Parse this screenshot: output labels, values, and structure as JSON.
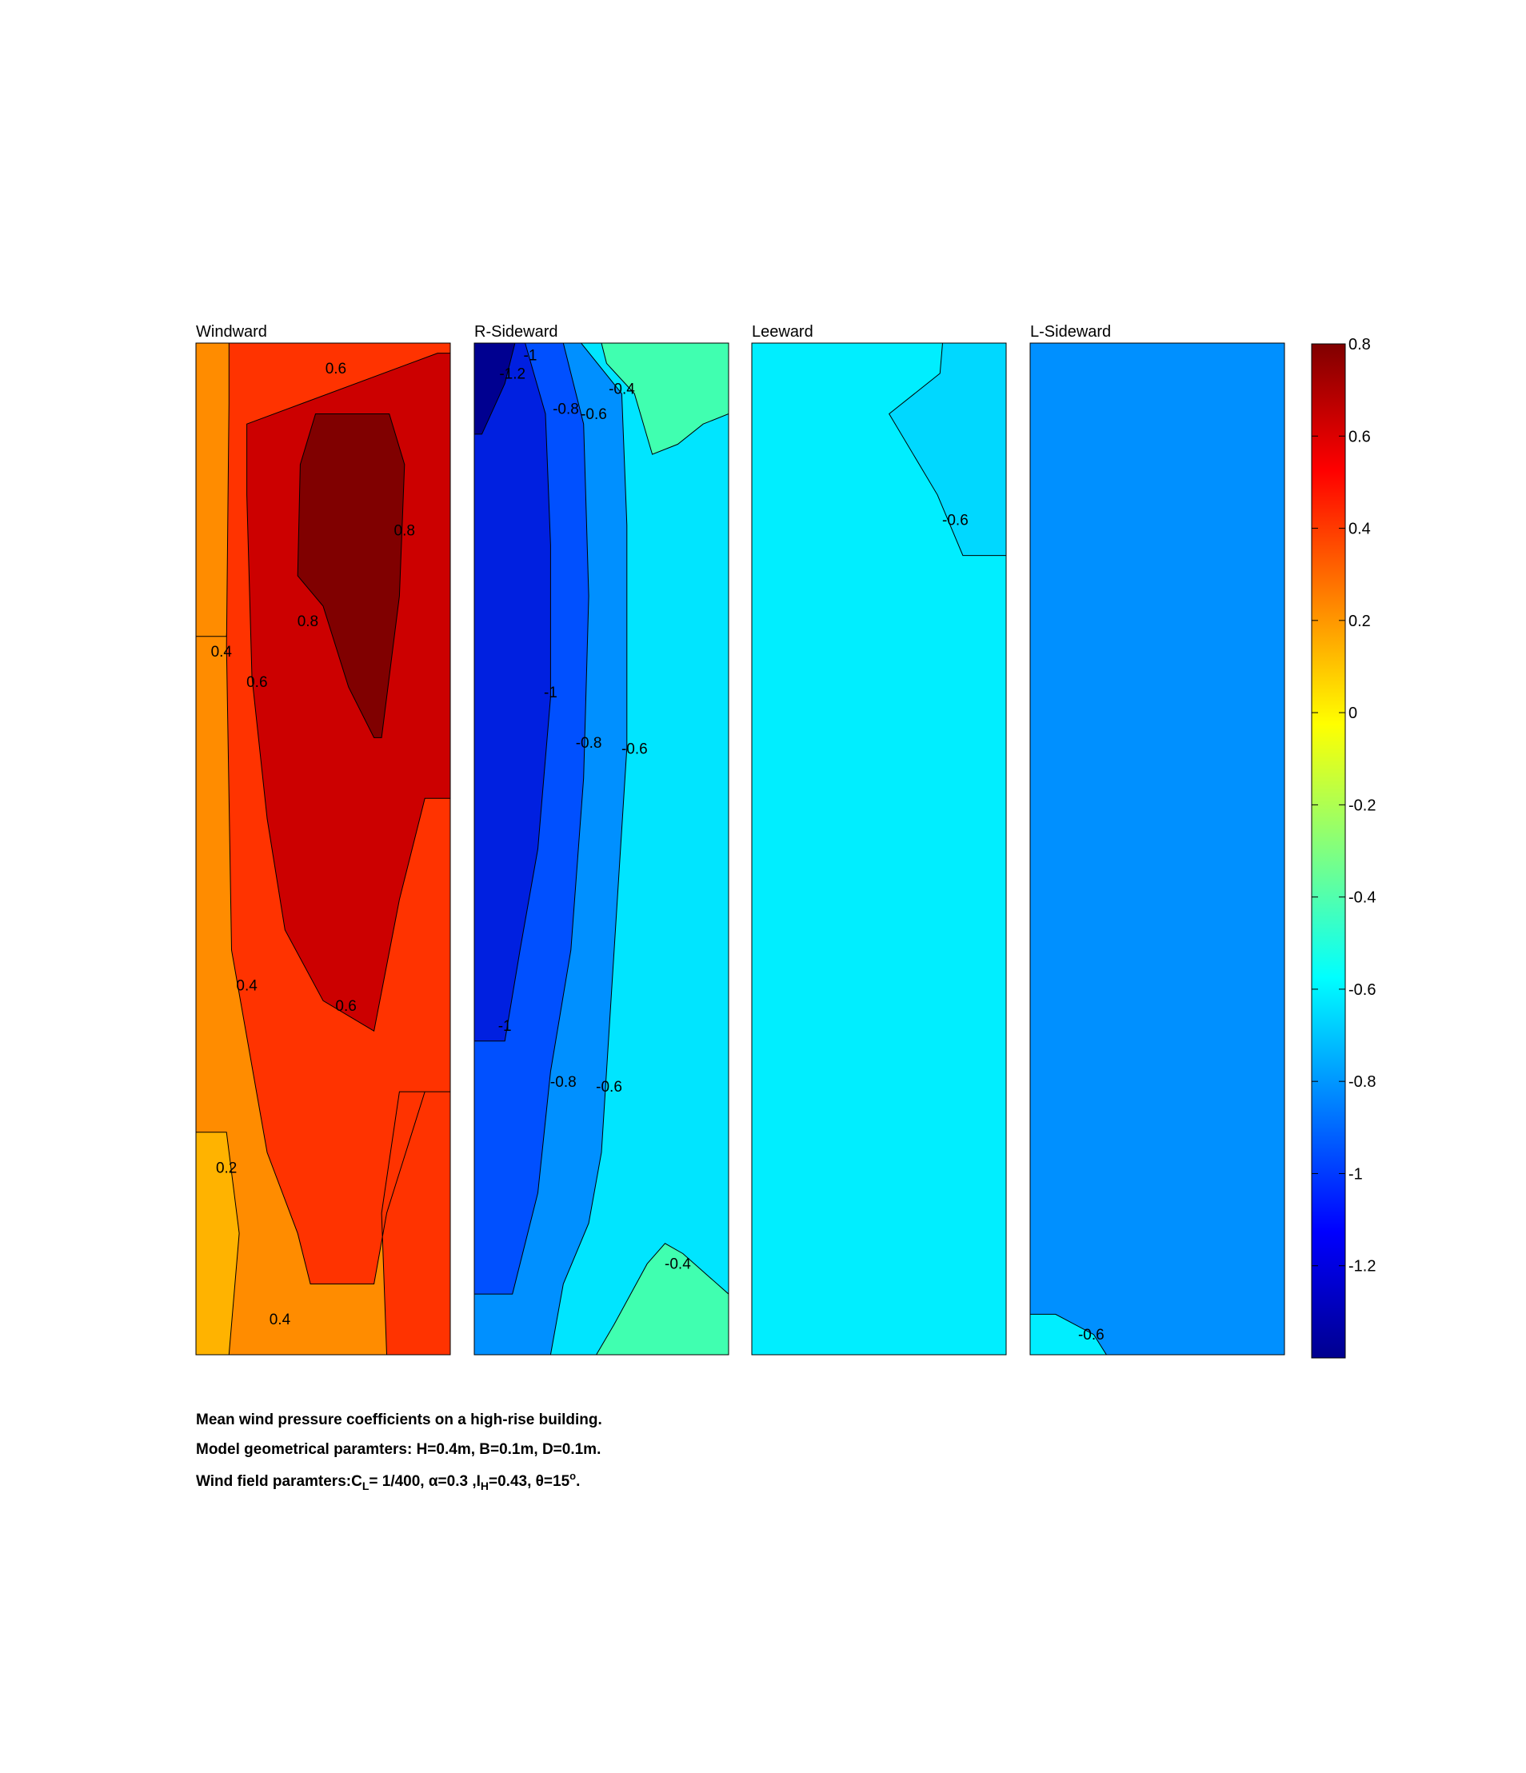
{
  "chart_data": {
    "type": "heatmap",
    "panels": [
      {
        "title": "Windward",
        "background": "#ff8c00",
        "regions": [
          {
            "color": "#ffb300",
            "poly": [
              [
                0,
                0.78
              ],
              [
                0.12,
                0.78
              ],
              [
                0.17,
                0.88
              ],
              [
                0.13,
                1
              ],
              [
                0,
                1
              ]
            ]
          },
          {
            "color": "#ff8c00",
            "poly": [
              [
                0,
                0
              ],
              [
                0.55,
                0
              ],
              [
                0.18,
                0.06
              ],
              [
                0.12,
                0.29
              ],
              [
                0,
                0.29
              ]
            ]
          },
          {
            "color": "#ff3300",
            "poly": [
              [
                0.13,
                0
              ],
              [
                1,
                0
              ],
              [
                1,
                1
              ],
              [
                0.75,
                1
              ],
              [
                0.73,
                0.86
              ],
              [
                0.8,
                0.74
              ],
              [
                1,
                0.74
              ],
              [
                1,
                0.74
              ],
              [
                0.9,
                0.74
              ],
              [
                0.75,
                0.86
              ],
              [
                0.7,
                0.93
              ],
              [
                0.45,
                0.93
              ],
              [
                0.4,
                0.88
              ],
              [
                0.28,
                0.8
              ],
              [
                0.14,
                0.6
              ],
              [
                0.12,
                0.3
              ],
              [
                0.13,
                0.06
              ]
            ]
          },
          {
            "color": "#cc0000",
            "poly": [
              [
                0.2,
                0.08
              ],
              [
                0.95,
                0.01
              ],
              [
                1,
                0.01
              ],
              [
                1,
                0.45
              ],
              [
                0.9,
                0.45
              ],
              [
                0.8,
                0.55
              ],
              [
                0.7,
                0.68
              ],
              [
                0.5,
                0.65
              ],
              [
                0.35,
                0.58
              ],
              [
                0.28,
                0.47
              ],
              [
                0.22,
                0.33
              ],
              [
                0.2,
                0.15
              ]
            ]
          },
          {
            "color": "#800000",
            "poly": [
              [
                0.47,
                0.07
              ],
              [
                0.76,
                0.07
              ],
              [
                0.82,
                0.12
              ],
              [
                0.8,
                0.25
              ],
              [
                0.73,
                0.39
              ],
              [
                0.7,
                0.39
              ],
              [
                0.6,
                0.34
              ],
              [
                0.5,
                0.26
              ],
              [
                0.4,
                0.23
              ],
              [
                0.41,
                0.12
              ]
            ]
          }
        ],
        "labels": [
          {
            "text": "0.6",
            "x": 0.55,
            "y": 0.03
          },
          {
            "text": "0.8",
            "x": 0.82,
            "y": 0.19
          },
          {
            "text": "0.8",
            "x": 0.44,
            "y": 0.28
          },
          {
            "text": "0.4",
            "x": 0.1,
            "y": 0.31
          },
          {
            "text": "0.6",
            "x": 0.24,
            "y": 0.34
          },
          {
            "text": "0.4",
            "x": 0.2,
            "y": 0.64
          },
          {
            "text": "0.6",
            "x": 0.59,
            "y": 0.66
          },
          {
            "text": "0.2",
            "x": 0.12,
            "y": 0.82
          },
          {
            "text": "0.4",
            "x": 0.33,
            "y": 0.97
          }
        ]
      },
      {
        "title": "R-Sideward",
        "background": "#00e5ff",
        "regions": [
          {
            "color": "#0090ff",
            "poly": [
              [
                0,
                0
              ],
              [
                0.42,
                0
              ],
              [
                0.58,
                0.05
              ],
              [
                0.6,
                0.18
              ],
              [
                0.6,
                0.4
              ],
              [
                0.55,
                0.6
              ],
              [
                0.5,
                0.8
              ],
              [
                0.45,
                0.87
              ],
              [
                0.35,
                0.93
              ],
              [
                0.3,
                1
              ],
              [
                0,
                1
              ]
            ]
          },
          {
            "color": "#0050ff",
            "poly": [
              [
                0,
                0
              ],
              [
                0.35,
                0
              ],
              [
                0.43,
                0.08
              ],
              [
                0.45,
                0.25
              ],
              [
                0.43,
                0.43
              ],
              [
                0.38,
                0.6
              ],
              [
                0.3,
                0.72
              ],
              [
                0.25,
                0.84
              ],
              [
                0.15,
                0.94
              ],
              [
                0,
                0.94
              ]
            ]
          },
          {
            "color": "#0020e0",
            "poly": [
              [
                0,
                0
              ],
              [
                0.2,
                0
              ],
              [
                0.28,
                0.07
              ],
              [
                0.3,
                0.2
              ],
              [
                0.3,
                0.35
              ],
              [
                0.25,
                0.5
              ],
              [
                0.18,
                0.6
              ],
              [
                0.12,
                0.69
              ],
              [
                0,
                0.69
              ]
            ]
          },
          {
            "color": "#000090",
            "poly": [
              [
                0,
                0
              ],
              [
                0.16,
                0
              ],
              [
                0.12,
                0.04
              ],
              [
                0.03,
                0.09
              ],
              [
                0,
                0.09
              ]
            ]
          },
          {
            "color": "#40ffb0",
            "poly": [
              [
                0.5,
                0
              ],
              [
                1,
                0
              ],
              [
                1,
                0.07
              ],
              [
                0.9,
                0.08
              ],
              [
                0.8,
                0.1
              ],
              [
                0.7,
                0.11
              ],
              [
                0.63,
                0.05
              ],
              [
                0.52,
                0.02
              ]
            ]
          },
          {
            "color": "#40ffb0",
            "poly": [
              [
                0.48,
                1
              ],
              [
                0.55,
                0.97
              ],
              [
                0.68,
                0.91
              ],
              [
                0.75,
                0.89
              ],
              [
                0.82,
                0.9
              ],
              [
                1,
                0.94
              ],
              [
                1,
                1
              ]
            ]
          }
        ],
        "labels": [
          {
            "text": "-1",
            "x": 0.22,
            "y": 0.017
          },
          {
            "text": "-1.2",
            "x": 0.15,
            "y": 0.035
          },
          {
            "text": "-0.4",
            "x": 0.58,
            "y": 0.05
          },
          {
            "text": "-0.8",
            "x": 0.36,
            "y": 0.07
          },
          {
            "text": "-0.6",
            "x": 0.47,
            "y": 0.075
          },
          {
            "text": "-1",
            "x": 0.3,
            "y": 0.35
          },
          {
            "text": "-0.8",
            "x": 0.45,
            "y": 0.4
          },
          {
            "text": "-0.6",
            "x": 0.63,
            "y": 0.406
          },
          {
            "text": "-1",
            "x": 0.12,
            "y": 0.68
          },
          {
            "text": "-0.8",
            "x": 0.35,
            "y": 0.735
          },
          {
            "text": "-0.6",
            "x": 0.53,
            "y": 0.74
          },
          {
            "text": "-0.4",
            "x": 0.8,
            "y": 0.915
          }
        ]
      },
      {
        "title": "Leeward",
        "background": "#00eeff",
        "regions": [
          {
            "color": "#00d8ff",
            "poly": [
              [
                0.75,
                0
              ],
              [
                1,
                0
              ],
              [
                1,
                0.21
              ],
              [
                0.83,
                0.21
              ],
              [
                0.73,
                0.15
              ],
              [
                0.54,
                0.07
              ],
              [
                0.74,
                0.03
              ]
            ]
          }
        ],
        "labels": [
          {
            "text": "-0.6",
            "x": 0.8,
            "y": 0.18
          }
        ]
      },
      {
        "title": "L-Sideward",
        "background": "#0090ff",
        "regions": [
          {
            "color": "#00eeff",
            "poly": [
              [
                0,
                0.96
              ],
              [
                0.1,
                0.96
              ],
              [
                0.25,
                0.98
              ],
              [
                0.3,
                1
              ],
              [
                0,
                1
              ]
            ]
          }
        ],
        "labels": [
          {
            "text": "-0.6",
            "x": 0.24,
            "y": 0.985
          }
        ]
      }
    ],
    "colorbar": {
      "range": [
        -1.4,
        0.8
      ],
      "ticks": [
        {
          "label": "0.8",
          "value": 0.8
        },
        {
          "label": "0.6",
          "value": 0.6
        },
        {
          "label": "0.4",
          "value": 0.4
        },
        {
          "label": "0.2",
          "value": 0.2
        },
        {
          "label": "0",
          "value": 0
        },
        {
          "label": "-0.2",
          "value": -0.2
        },
        {
          "label": "-0.4",
          "value": -0.4
        },
        {
          "label": "-0.6",
          "value": -0.6
        },
        {
          "label": "-0.8",
          "value": -0.8
        },
        {
          "label": "-1",
          "value": -1
        },
        {
          "label": "-1.2",
          "value": -1.2
        }
      ],
      "colormap": [
        "#00008f",
        "#0000ff",
        "#0080ff",
        "#00ffff",
        "#80ff80",
        "#ffff00",
        "#ff8000",
        "#ff0000",
        "#800000"
      ]
    }
  },
  "caption": {
    "line1": "Mean wind pressure coefficients on a high-rise building.",
    "line2": "Model geometrical paramters: H=0.4m, B=0.1m, D=0.1m.",
    "line3_prefix": "Wind field paramters:C",
    "line3_cl_sub": "L",
    "line3_mid1": "= 1/400, α=0.3 ,I",
    "line3_ih_sub": "H",
    "line3_mid2": "=0.43, θ=15",
    "line3_sup": "o",
    "line3_end": "."
  }
}
